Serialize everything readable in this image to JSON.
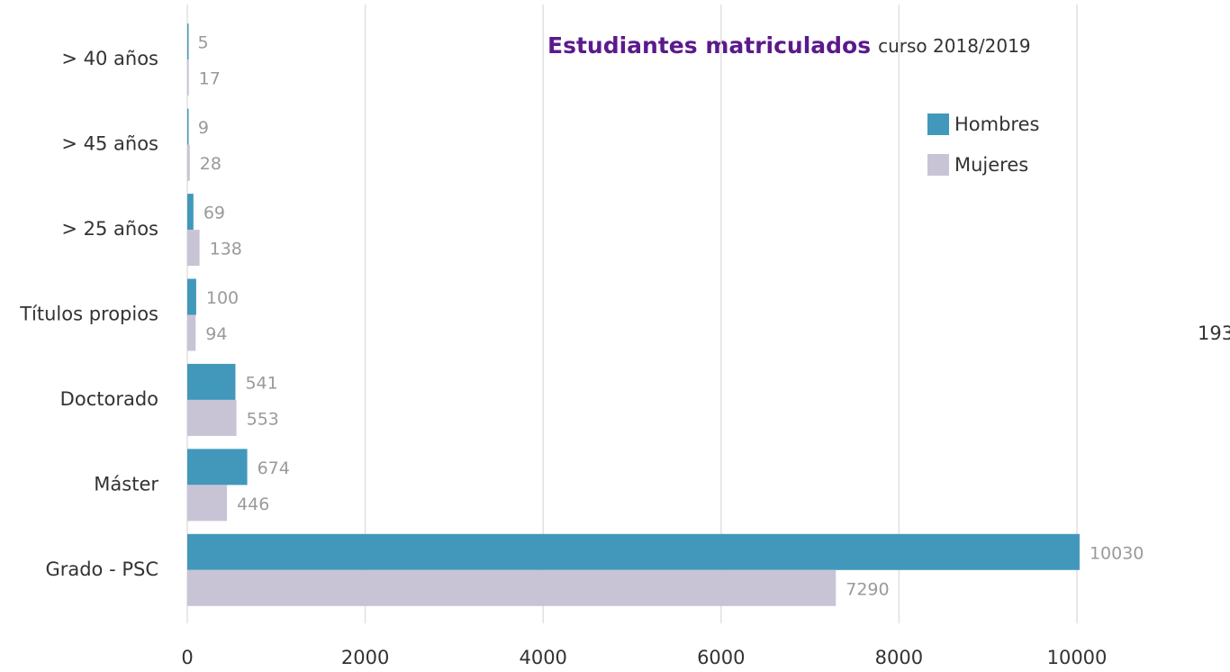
{
  "chart_data": {
    "type": "barh",
    "title": "Estudiantes matriculados",
    "subtitle": "curso 2018/2019",
    "annotation": "193",
    "categories": [
      "> 40 años",
      "> 45 años",
      "> 25 años",
      "Títulos propios",
      "Doctorado",
      "Máster",
      "Grado - PSC"
    ],
    "series": [
      {
        "name": "Hombres",
        "color": "#4298bb",
        "values": [
          5,
          9,
          69,
          100,
          541,
          674,
          10030
        ]
      },
      {
        "name": "Mujeres",
        "color": "#c8c4d6",
        "values": [
          17,
          28,
          138,
          94,
          553,
          446,
          7290
        ]
      }
    ],
    "xlim": [
      0,
      10000
    ],
    "xticks": [
      0,
      2000,
      4000,
      6000,
      8000,
      10000
    ],
    "grid": true,
    "legend": "upper right"
  }
}
